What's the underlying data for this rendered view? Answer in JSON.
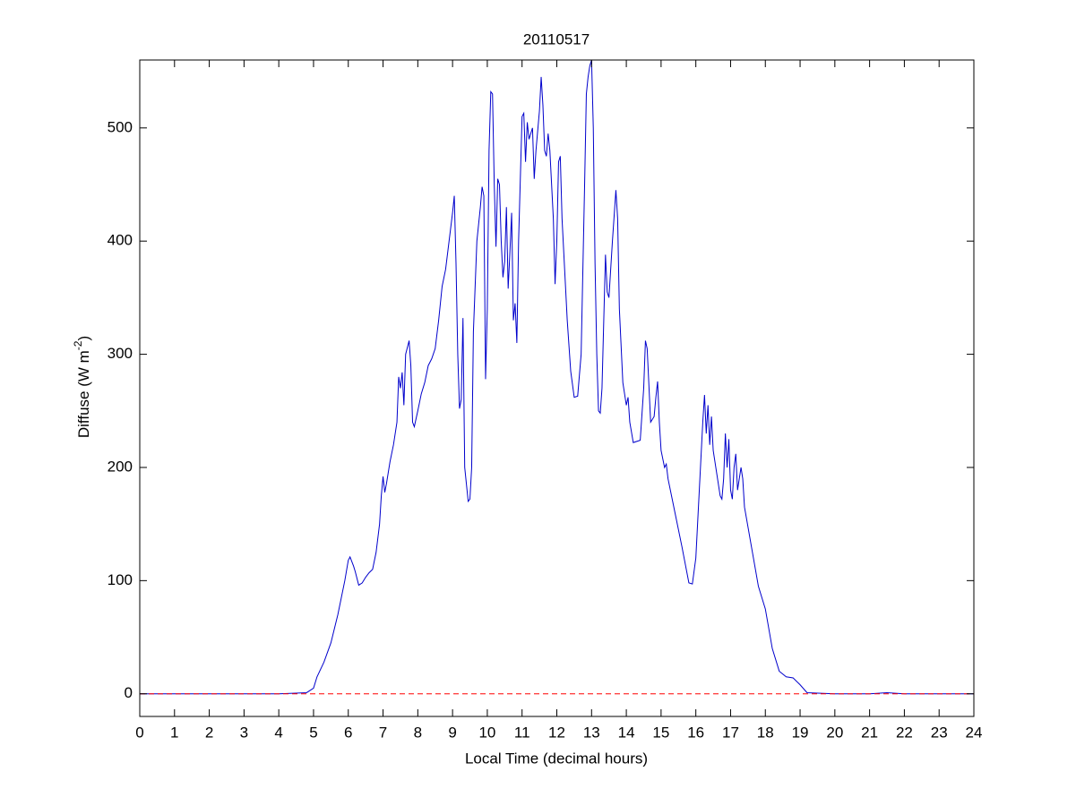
{
  "chart_data": {
    "type": "line",
    "title": "20110517",
    "xlabel": "Local Time (decimal hours)",
    "ylabel": [
      "Diffuse (W m",
      "-2",
      ")"
    ],
    "xlim": [
      0,
      24
    ],
    "xticks": [
      0,
      1,
      2,
      3,
      4,
      5,
      6,
      7,
      8,
      9,
      10,
      11,
      12,
      13,
      14,
      15,
      16,
      17,
      18,
      19,
      20,
      21,
      22,
      23,
      24
    ],
    "ylim": [
      -20,
      560
    ],
    "yticks": [
      0,
      100,
      200,
      300,
      400,
      500
    ],
    "reference_line": {
      "value": 0,
      "color": "#ff0000",
      "style": "dashed"
    },
    "series": [
      {
        "color": "#0000cc",
        "x": [
          0,
          1,
          2,
          3,
          4,
          4.8,
          5.0,
          5.1,
          5.3,
          5.5,
          5.7,
          5.9,
          6.0,
          6.05,
          6.15,
          6.2,
          6.3,
          6.4,
          6.5,
          6.6,
          6.7,
          6.8,
          6.9,
          6.95,
          7.0,
          7.05,
          7.1,
          7.2,
          7.3,
          7.4,
          7.45,
          7.5,
          7.55,
          7.6,
          7.65,
          7.75,
          7.8,
          7.85,
          7.9,
          8.0,
          8.1,
          8.2,
          8.3,
          8.4,
          8.5,
          8.6,
          8.7,
          8.8,
          8.9,
          9.0,
          9.05,
          9.1,
          9.15,
          9.2,
          9.25,
          9.3,
          9.35,
          9.45,
          9.5,
          9.55,
          9.6,
          9.7,
          9.8,
          9.85,
          9.9,
          9.95,
          10.0,
          10.05,
          10.1,
          10.15,
          10.2,
          10.25,
          10.3,
          10.35,
          10.4,
          10.45,
          10.5,
          10.55,
          10.6,
          10.65,
          10.7,
          10.75,
          10.8,
          10.85,
          10.9,
          11.0,
          11.05,
          11.1,
          11.15,
          11.2,
          11.3,
          11.35,
          11.4,
          11.5,
          11.55,
          11.6,
          11.65,
          11.7,
          11.75,
          11.8,
          11.9,
          11.95,
          12.0,
          12.05,
          12.1,
          12.15,
          12.2,
          12.3,
          12.4,
          12.5,
          12.6,
          12.7,
          12.8,
          12.85,
          12.9,
          12.95,
          13.0,
          13.05,
          13.1,
          13.15,
          13.2,
          13.25,
          13.3,
          13.4,
          13.45,
          13.5,
          13.6,
          13.7,
          13.75,
          13.8,
          13.9,
          14.0,
          14.05,
          14.1,
          14.2,
          14.4,
          14.5,
          14.55,
          14.6,
          14.7,
          14.8,
          14.85,
          14.9,
          14.95,
          15.0,
          15.1,
          15.15,
          15.2,
          15.4,
          15.6,
          15.8,
          15.9,
          16.0,
          16.1,
          16.2,
          16.25,
          16.3,
          16.35,
          16.4,
          16.45,
          16.5,
          16.6,
          16.7,
          16.75,
          16.8,
          16.85,
          16.9,
          16.95,
          17.0,
          17.05,
          17.1,
          17.15,
          17.2,
          17.3,
          17.35,
          17.4,
          17.6,
          17.8,
          18.0,
          18.2,
          18.4,
          18.6,
          18.8,
          19.0,
          19.2,
          20.0,
          21.0,
          21.5,
          22.0,
          24.0
        ],
        "values": [
          0,
          0,
          0,
          0,
          0,
          1,
          5,
          15,
          28,
          45,
          70,
          100,
          118,
          121,
          113,
          108,
          96,
          98,
          103,
          107,
          110,
          125,
          150,
          175,
          192,
          178,
          186,
          205,
          220,
          240,
          280,
          270,
          284,
          255,
          300,
          312,
          290,
          240,
          236,
          250,
          265,
          275,
          290,
          296,
          305,
          330,
          360,
          375,
          400,
          425,
          440,
          380,
          300,
          252,
          260,
          332,
          200,
          170,
          172,
          200,
          320,
          400,
          430,
          448,
          440,
          278,
          340,
          480,
          532,
          530,
          450,
          395,
          455,
          450,
          400,
          368,
          382,
          430,
          358,
          390,
          425,
          330,
          345,
          310,
          400,
          510,
          513,
          470,
          505,
          490,
          500,
          455,
          480,
          515,
          545,
          520,
          480,
          475,
          495,
          480,
          420,
          362,
          400,
          470,
          475,
          420,
          390,
          330,
          285,
          262,
          263,
          300,
          450,
          530,
          545,
          555,
          560,
          500,
          380,
          300,
          250,
          248,
          270,
          388,
          355,
          350,
          400,
          445,
          420,
          340,
          275,
          255,
          262,
          240,
          222,
          224,
          270,
          312,
          305,
          240,
          245,
          262,
          276,
          240,
          215,
          200,
          203,
          190,
          160,
          130,
          98,
          97,
          120,
          180,
          240,
          264,
          230,
          255,
          220,
          245,
          215,
          195,
          175,
          172,
          190,
          230,
          200,
          225,
          180,
          172,
          200,
          212,
          180,
          200,
          190,
          165,
          130,
          95,
          75,
          40,
          20,
          15,
          14,
          8,
          1,
          0,
          0,
          1,
          0,
          0
        ]
      }
    ]
  }
}
